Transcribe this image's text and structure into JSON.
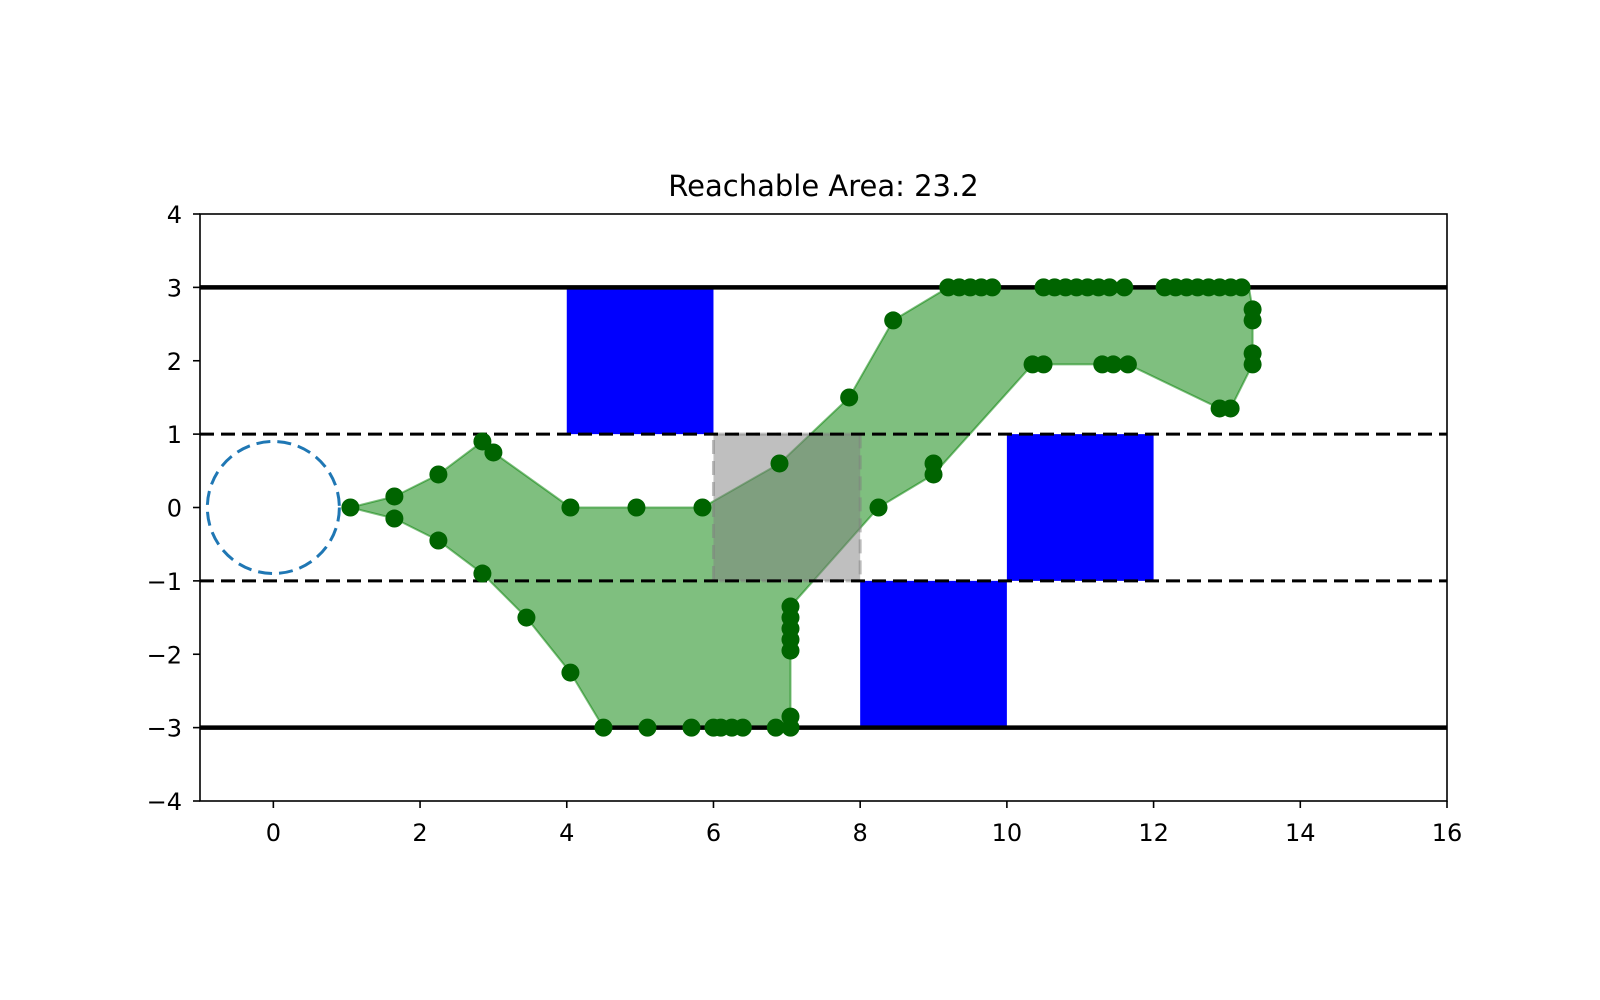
{
  "chart_data": {
    "type": "scatter",
    "title": "Reachable Area: 23.2",
    "xlabel": "",
    "ylabel": "",
    "xlim": [
      -1,
      16
    ],
    "ylim": [
      -4,
      4
    ],
    "xticks": [
      "0",
      "2",
      "4",
      "6",
      "8",
      "10",
      "12",
      "14",
      "16"
    ],
    "yticks": [
      "4",
      "3",
      "2",
      "1",
      "0",
      "−1",
      "−2",
      "−3",
      "−4"
    ],
    "grid": false,
    "walls": [
      {
        "y": 3,
        "style": "solid"
      },
      {
        "y": -3,
        "style": "solid"
      },
      {
        "y": 1,
        "style": "dashed"
      },
      {
        "y": -1,
        "style": "dashed"
      }
    ],
    "start_circle": {
      "center": [
        0,
        0
      ],
      "radius": 0.9,
      "color": "#1f77b4",
      "style": "dashed"
    },
    "obstacles": [
      {
        "x": [
          4,
          6
        ],
        "y": [
          1,
          3
        ],
        "color": "#0000ff"
      },
      {
        "x": [
          8,
          10
        ],
        "y": [
          -3,
          -1
        ],
        "color": "#0000ff"
      },
      {
        "x": [
          10,
          12
        ],
        "y": [
          -1,
          1
        ],
        "color": "#0000ff"
      }
    ],
    "gray_zone": {
      "x": [
        6,
        8
      ],
      "y": [
        -1,
        1
      ],
      "color": "#bebebe"
    },
    "reachable_polygon": [
      [
        1.05,
        0
      ],
      [
        1.65,
        0.15
      ],
      [
        2.25,
        0.45
      ],
      [
        2.85,
        0.9
      ],
      [
        3.0,
        0.75
      ],
      [
        4.05,
        0
      ],
      [
        4.95,
        0
      ],
      [
        5.85,
        0
      ],
      [
        6.9,
        0.6
      ],
      [
        7.85,
        1.5
      ],
      [
        8.45,
        2.55
      ],
      [
        9.2,
        3
      ],
      [
        9.85,
        3
      ],
      [
        10.5,
        3
      ],
      [
        11.65,
        3
      ],
      [
        12.15,
        3
      ],
      [
        13.3,
        3
      ],
      [
        13.35,
        2.7
      ],
      [
        13.35,
        1.95
      ],
      [
        13.05,
        1.35
      ],
      [
        12.9,
        1.35
      ],
      [
        11.65,
        1.95
      ],
      [
        11.3,
        1.95
      ],
      [
        10.5,
        1.95
      ],
      [
        10.35,
        1.95
      ],
      [
        9.0,
        0.45
      ],
      [
        8.25,
        0
      ],
      [
        7.05,
        -1.35
      ],
      [
        7.05,
        -3
      ],
      [
        6.85,
        -3
      ],
      [
        6.0,
        -3
      ],
      [
        4.5,
        -3
      ],
      [
        4.05,
        -2.25
      ],
      [
        3.45,
        -1.5
      ],
      [
        2.85,
        -0.9
      ],
      [
        2.25,
        -0.45
      ],
      [
        1.65,
        -0.15
      ]
    ],
    "points": {
      "color": "#006400",
      "x": [
        1.05,
        1.65,
        1.65,
        2.25,
        2.25,
        2.85,
        3.0,
        2.85,
        3.45,
        4.05,
        4.05,
        4.95,
        5.85,
        4.5,
        5.1,
        5.7,
        6.0,
        6.1,
        6.25,
        6.4,
        6.85,
        7.05,
        7.05,
        7.05,
        7.05,
        7.05,
        7.05,
        7.05,
        6.9,
        7.85,
        8.45,
        8.25,
        9.0,
        9.0,
        9.2,
        9.35,
        9.5,
        9.65,
        9.8,
        10.5,
        10.65,
        10.8,
        10.95,
        11.1,
        11.25,
        11.4,
        11.6,
        10.35,
        10.5,
        11.3,
        11.45,
        11.65,
        12.15,
        12.3,
        12.45,
        12.6,
        12.75,
        12.9,
        13.05,
        13.2,
        13.35,
        13.35,
        13.35,
        13.35,
        12.9,
        13.05
      ],
      "y": [
        0,
        0.15,
        -0.15,
        0.45,
        -0.45,
        0.9,
        0.75,
        -0.9,
        -1.5,
        0,
        -2.25,
        0,
        0,
        -3,
        -3,
        -3,
        -3,
        -3,
        -3,
        -3,
        -3,
        -3,
        -2.85,
        -1.35,
        -1.5,
        -1.65,
        -1.8,
        -1.95,
        0.6,
        1.5,
        2.55,
        0,
        0.6,
        0.45,
        3,
        3,
        3,
        3,
        3,
        3,
        3,
        3,
        3,
        3,
        3,
        3,
        3,
        1.95,
        1.95,
        1.95,
        1.95,
        1.95,
        3,
        3,
        3,
        3,
        3,
        3,
        3,
        3,
        2.7,
        2.55,
        2.1,
        1.95,
        1.35,
        1.35
      ]
    }
  }
}
